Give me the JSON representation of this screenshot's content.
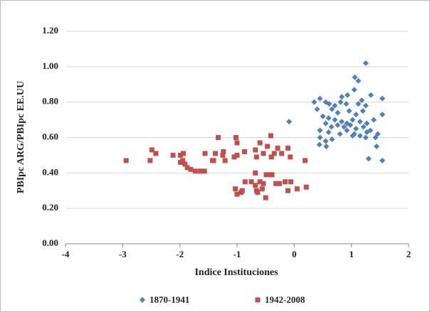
{
  "chart_data": {
    "type": "scatter",
    "x_label": "Indice Instituciones",
    "y_label": "PBIpc ARG/PBIpc EE.UU",
    "xlim": [
      -4,
      2
    ],
    "xticks": [
      -4,
      -3,
      -2,
      -1,
      0,
      1,
      2
    ],
    "ylim": [
      0,
      1.2
    ],
    "yticks": [
      {
        "value": 0,
        "label": "0.00"
      },
      {
        "value": 0.2,
        "label": "0.20"
      },
      {
        "value": 0.4,
        "label": "0.40"
      },
      {
        "value": 0.6,
        "label": "0.60"
      },
      {
        "value": 0.8,
        "label": "0.80"
      },
      {
        "value": 1.0,
        "label": "1.00"
      },
      {
        "value": 1.2,
        "label": "1.20"
      }
    ],
    "grid": true,
    "legend": "bottom",
    "series": [
      {
        "name": "1870-1941",
        "color": "#4f81bd",
        "marker": "diamond",
        "x": [
          1.25,
          1.06,
          1.12,
          0.83,
          0.93,
          1.05,
          1.18,
          1.34,
          1.54,
          0.35,
          0.45,
          0.55,
          0.61,
          0.71,
          0.81,
          0.91,
          1.12,
          1.25,
          0.4,
          0.66,
          0.76,
          0.96,
          1.08,
          1.2,
          1.54,
          0.5,
          0.6,
          0.71,
          0.83,
          0.92,
          1.02,
          1.15,
          1.27,
          1.39,
          0.55,
          0.65,
          0.76,
          0.87,
          0.98,
          1.08,
          1.21,
          1.33,
          1.46,
          0.45,
          0.6,
          0.8,
          0.92,
          1.05,
          1.15,
          1.27,
          1.42,
          0.45,
          0.55,
          0.66,
          1.02,
          1.25,
          0.44,
          0.56,
          1.44,
          -0.09,
          1.3,
          1.54
        ],
        "values": [
          1.02,
          0.94,
          0.92,
          0.83,
          0.84,
          0.87,
          0.81,
          0.84,
          0.82,
          0.8,
          0.82,
          0.8,
          0.79,
          0.78,
          0.8,
          0.79,
          0.79,
          0.78,
          0.76,
          0.76,
          0.74,
          0.75,
          0.73,
          0.75,
          0.73,
          0.72,
          0.71,
          0.7,
          0.69,
          0.68,
          0.7,
          0.69,
          0.68,
          0.7,
          0.68,
          0.66,
          0.67,
          0.66,
          0.67,
          0.65,
          0.66,
          0.64,
          0.62,
          0.64,
          0.63,
          0.62,
          0.64,
          0.62,
          0.61,
          0.63,
          0.6,
          0.6,
          0.58,
          0.59,
          0.61,
          0.6,
          0.56,
          0.55,
          0.55,
          0.69,
          0.48,
          0.47
        ]
      },
      {
        "name": "1942-2008",
        "color": "#c0504d",
        "marker": "square",
        "x": [
          -2.94,
          -2.52,
          -2.49,
          -2.42,
          -2.12,
          -1.99,
          -1.95,
          -1.94,
          -1.91,
          -1.87,
          -1.81,
          -1.73,
          -1.64,
          -1.57,
          -1.99,
          -1.43,
          -1.41,
          -1.38,
          -1.33,
          -1.25,
          -1.24,
          -1.21,
          -1.56,
          -1.02,
          -1.0,
          -1.05,
          -1.0,
          -0.87,
          -0.68,
          -0.66,
          -0.6,
          -0.54,
          -0.47,
          -0.41,
          -0.4,
          -0.35,
          -0.29,
          -0.22,
          -0.07,
          -0.11,
          -1.03,
          -1.0,
          -0.93,
          -0.91,
          -0.86,
          -0.75,
          -0.68,
          -0.68,
          -0.66,
          -0.64,
          -0.6,
          -0.56,
          -0.54,
          -0.5,
          -0.49,
          -0.41,
          -0.39,
          -0.32,
          -0.26,
          -0.16,
          -0.11,
          -0.06,
          0.05,
          0.19,
          0.21
        ],
        "values": [
          0.47,
          0.47,
          0.53,
          0.51,
          0.5,
          0.5,
          0.47,
          0.51,
          0.45,
          0.43,
          0.42,
          0.41,
          0.41,
          0.41,
          0.46,
          0.47,
          0.47,
          0.51,
          0.6,
          0.5,
          0.52,
          0.47,
          0.51,
          0.6,
          0.57,
          0.49,
          0.5,
          0.52,
          0.53,
          0.49,
          0.57,
          0.51,
          0.55,
          0.61,
          0.49,
          0.51,
          0.54,
          0.51,
          0.49,
          0.54,
          0.31,
          0.28,
          0.29,
          0.3,
          0.35,
          0.35,
          0.4,
          0.33,
          0.3,
          0.29,
          0.35,
          0.31,
          0.34,
          0.26,
          0.39,
          0.39,
          0.39,
          0.34,
          0.34,
          0.35,
          0.3,
          0.35,
          0.31,
          0.47,
          0.32
        ]
      }
    ]
  }
}
